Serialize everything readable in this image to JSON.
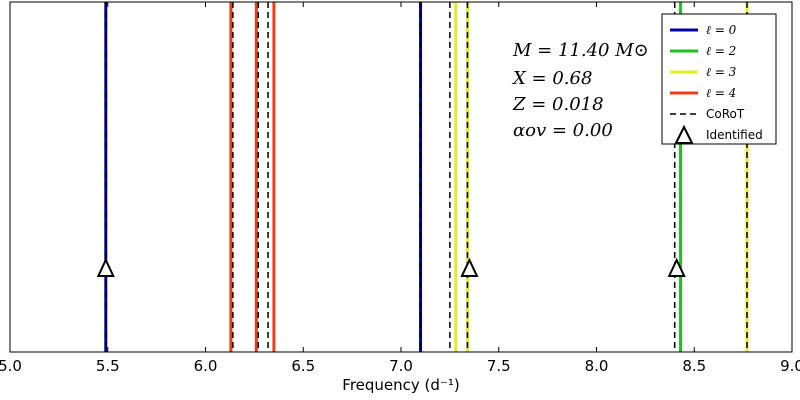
{
  "chart_data": {
    "type": "line",
    "xlabel": "Frequency (d⁻¹)",
    "ylabel": "",
    "xlim": [
      5.0,
      9.0
    ],
    "x_ticks": [
      "5.0",
      "5.5",
      "6.0",
      "6.5",
      "7.0",
      "7.5",
      "8.0",
      "8.5",
      "9.0"
    ],
    "grid": false,
    "legend_position": "top-right",
    "annotations": [
      "M = 11.40 M⊙",
      "X = 0.68",
      "Z = 0.018",
      "αov = 0.00"
    ],
    "series": [
      {
        "name": "ℓ = 0",
        "color": "#0000a8",
        "style": "solid",
        "frequencies": [
          5.49,
          7.1
        ]
      },
      {
        "name": "ℓ = 2",
        "color": "#1ec21e",
        "style": "solid",
        "frequencies": [
          8.43
        ]
      },
      {
        "name": "ℓ = 3",
        "color": "#e6ee1a",
        "style": "solid",
        "frequencies": [
          7.28,
          7.34,
          8.77
        ]
      },
      {
        "name": "ℓ = 4",
        "color": "#f03c14",
        "style": "solid",
        "frequencies": [
          6.13,
          6.26,
          6.35
        ]
      },
      {
        "name": "CoRoT",
        "color": "#000000",
        "style": "dashed",
        "frequencies": [
          5.49,
          6.14,
          6.27,
          6.32,
          7.1,
          7.25,
          7.34,
          8.4,
          8.77
        ]
      }
    ],
    "identified": {
      "name": "Identified",
      "frequencies": [
        5.49,
        7.35,
        8.41
      ]
    }
  }
}
